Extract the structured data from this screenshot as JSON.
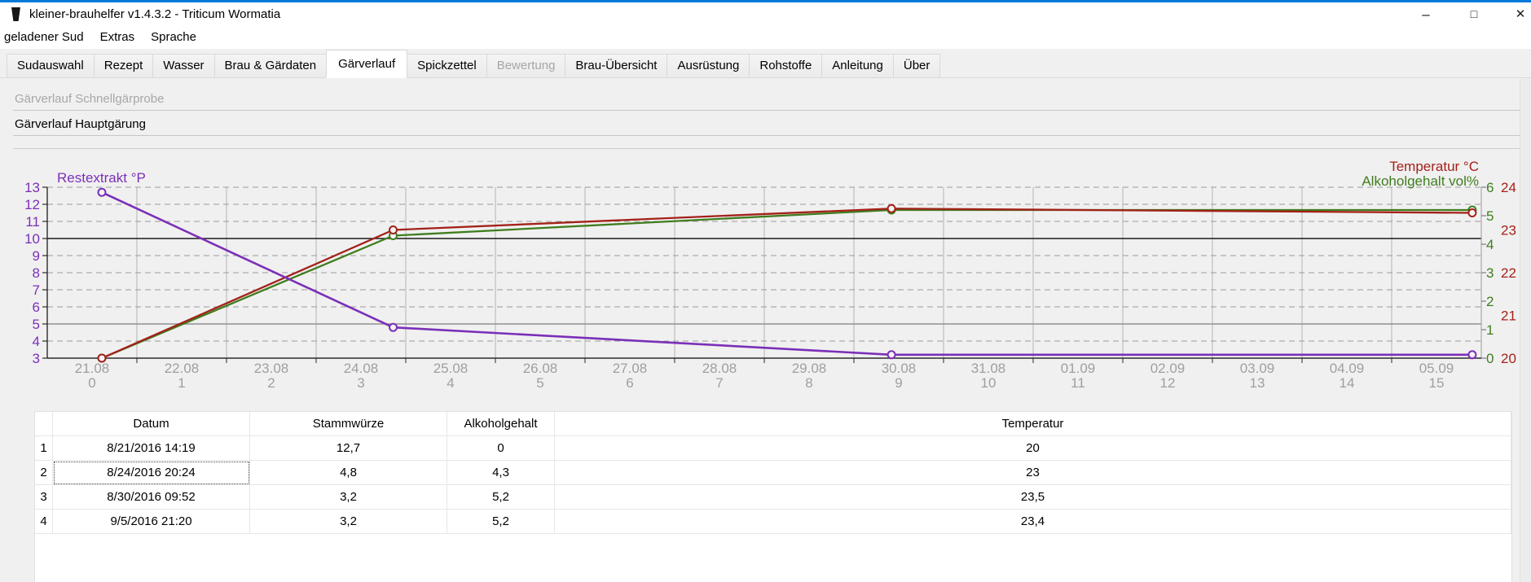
{
  "window": {
    "title": "kleiner-brauhelfer v1.4.3.2 - Triticum Wormatia",
    "controls": {
      "minimize": "–",
      "maximize": "□",
      "close": "✕"
    }
  },
  "menu": {
    "items": [
      "geladener Sud",
      "Extras",
      "Sprache"
    ]
  },
  "tabs": [
    {
      "label": "Sudauswahl"
    },
    {
      "label": "Rezept"
    },
    {
      "label": "Wasser"
    },
    {
      "label": "Brau & Gärdaten"
    },
    {
      "label": "Gärverlauf",
      "active": true
    },
    {
      "label": "Spickzettel"
    },
    {
      "label": "Bewertung",
      "disabled": true
    },
    {
      "label": "Brau-Übersicht"
    },
    {
      "label": "Ausrüstung"
    },
    {
      "label": "Rohstoffe"
    },
    {
      "label": "Anleitung"
    },
    {
      "label": "Über"
    }
  ],
  "sections": {
    "quick_test": "Gärverlauf Schnellgärprobe",
    "main_fermentation": "Gärverlauf Hauptgärung"
  },
  "chart_data": {
    "type": "line",
    "x_labels_date": [
      "21.08",
      "22.08",
      "23.08",
      "24.08",
      "25.08",
      "26.08",
      "27.08",
      "28.08",
      "29.08",
      "30.08",
      "31.08",
      "01.09",
      "02.09",
      "03.09",
      "04.09",
      "05.09"
    ],
    "x_labels_day": [
      "0",
      "1",
      "2",
      "3",
      "4",
      "5",
      "6",
      "7",
      "8",
      "9",
      "10",
      "11",
      "12",
      "13",
      "14",
      "15"
    ],
    "axes": {
      "left": {
        "title": "Restextrakt °P",
        "min": 3,
        "max": 13,
        "step": 1,
        "color": "#7b2fb8"
      },
      "temp": {
        "title": "Temperatur °C",
        "min": 20,
        "max": 24,
        "step": 1,
        "color": "#a32119"
      },
      "alc": {
        "title": "Alkoholgehalt vol%",
        "min": 0,
        "max": 6,
        "step": 1,
        "color": "#3f7d1e"
      }
    },
    "series": [
      {
        "name": "Alkoholgehalt",
        "axis": "alc",
        "color": "#3f7d1e",
        "points": [
          {
            "day": 0,
            "value": 0
          },
          {
            "day": 3.25,
            "value": 4.3
          },
          {
            "day": 8.81,
            "value": 5.2
          },
          {
            "day": 15.29,
            "value": 5.2
          }
        ]
      },
      {
        "name": "Temperatur",
        "axis": "temp",
        "color": "#a32119",
        "points": [
          {
            "day": 0,
            "value": 20
          },
          {
            "day": 3.25,
            "value": 23
          },
          {
            "day": 8.81,
            "value": 23.5
          },
          {
            "day": 15.29,
            "value": 23.4
          }
        ]
      },
      {
        "name": "Restextrakt",
        "axis": "left",
        "color": "#7b2fb8",
        "points": [
          {
            "day": 0,
            "value": 12.7
          },
          {
            "day": 3.25,
            "value": 4.8
          },
          {
            "day": 8.81,
            "value": 3.2
          },
          {
            "day": 15.29,
            "value": 3.2
          }
        ]
      }
    ],
    "reference_lines": [
      {
        "axis": "left",
        "value": 10,
        "color": "#1a1a1a",
        "style": "solid"
      },
      {
        "axis": "left",
        "value": 5,
        "color": "#8f8f8f",
        "style": "solid"
      }
    ],
    "grid": {
      "horizontal": "dashed-per-left-unit",
      "vertical": "solid-between-days",
      "legend": "none"
    }
  },
  "table": {
    "row_numbers": [
      "1",
      "2",
      "3",
      "4"
    ],
    "columns": [
      "Datum",
      "Stammwürze",
      "Alkoholgehalt",
      "Temperatur"
    ],
    "rows": [
      [
        "8/21/2016 14:19",
        "12,7",
        "0",
        "20"
      ],
      [
        "8/24/2016 20:24",
        "4,8",
        "4,3",
        "23"
      ],
      [
        "8/30/2016 09:52",
        "3,2",
        "5,2",
        "23,5"
      ],
      [
        "9/5/2016 21:20",
        "3,2",
        "5,2",
        "23,4"
      ]
    ],
    "focused_cell": {
      "row": 1,
      "col": 0
    }
  }
}
